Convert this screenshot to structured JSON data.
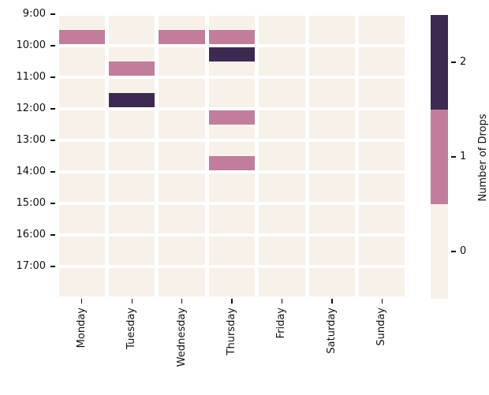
{
  "chart_data": {
    "type": "heatmap",
    "title": "",
    "x_categories": [
      "Monday",
      "Tuesday",
      "Wednesday",
      "Thursday",
      "Friday",
      "Saturday",
      "Sunday"
    ],
    "ytick_labels": [
      "9:00",
      "10:00",
      "11:00",
      "12:00",
      "13:00",
      "14:00",
      "15:00",
      "16:00",
      "17:00"
    ],
    "time_slots": [
      "9:00",
      "9:30",
      "10:00",
      "10:30",
      "11:00",
      "11:30",
      "12:00",
      "12:30",
      "13:00",
      "13:30",
      "14:00",
      "14:30",
      "15:00",
      "15:30",
      "16:00",
      "16:30",
      "17:00",
      "17:30"
    ],
    "series": [
      {
        "name": "Monday",
        "values": [
          0,
          1,
          0,
          0,
          0,
          0,
          0,
          0,
          0,
          0,
          0,
          0,
          0,
          0,
          0,
          0,
          0,
          0
        ]
      },
      {
        "name": "Tuesday",
        "values": [
          0,
          0,
          0,
          1,
          0,
          2,
          0,
          0,
          0,
          0,
          0,
          0,
          0,
          0,
          0,
          0,
          0,
          0
        ]
      },
      {
        "name": "Wednesday",
        "values": [
          0,
          1,
          0,
          0,
          0,
          0,
          0,
          0,
          0,
          0,
          0,
          0,
          0,
          0,
          0,
          0,
          0,
          0
        ]
      },
      {
        "name": "Thursday",
        "values": [
          0,
          1,
          2,
          0,
          0,
          0,
          1,
          0,
          0,
          1,
          0,
          0,
          0,
          0,
          0,
          0,
          0,
          0
        ]
      },
      {
        "name": "Friday",
        "values": [
          0,
          0,
          0,
          0,
          0,
          0,
          0,
          0,
          0,
          0,
          0,
          0,
          0,
          0,
          0,
          0,
          0,
          0
        ]
      },
      {
        "name": "Saturday",
        "values": [
          0,
          0,
          0,
          0,
          0,
          0,
          0,
          0,
          0,
          0,
          0,
          0,
          0,
          0,
          0,
          0,
          0,
          0
        ]
      },
      {
        "name": "Sunday",
        "values": [
          0,
          0,
          0,
          0,
          0,
          0,
          0,
          0,
          0,
          0,
          0,
          0,
          0,
          0,
          0,
          0,
          0,
          0
        ]
      }
    ],
    "value_colors": {
      "0": "#f8f1e9",
      "1": "#c17e9c",
      "2": "#3d2a50"
    },
    "colorbar": {
      "label": "Number of Drops",
      "ticks": [
        "2",
        "1",
        "0"
      ],
      "segment_colors_top_to_bottom": [
        "#3d2a50",
        "#c17e9c",
        "#f8f1e9"
      ]
    },
    "legend_position": "right",
    "grid": "on"
  }
}
